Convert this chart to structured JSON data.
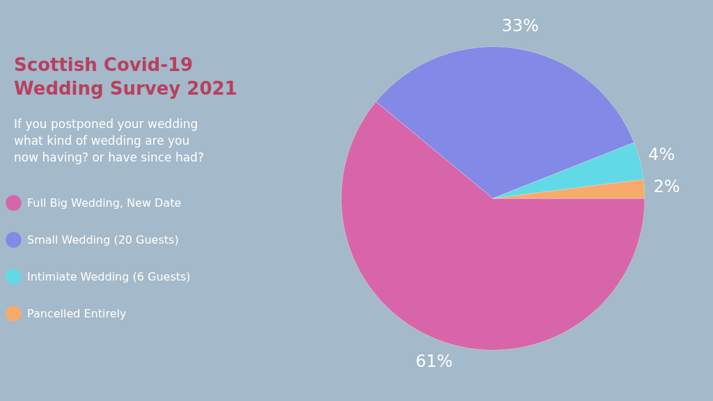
{
  "chart_data": {
    "type": "pie",
    "title": "Scottish Covid-19 Wedding Survey 2021",
    "subtitle": "If you postponed your wedding what kind of wedding are you now having? or have since had?",
    "categories": [
      "Full Big Wedding, New Date",
      "Small Wedding (20 Guests)",
      "Intimiate Wedding (6 Guests)",
      "Pancelled Entirely"
    ],
    "values": [
      61,
      33,
      4,
      2
    ],
    "colors": [
      "#d865aa",
      "#8389e6",
      "#62d9e6",
      "#f8aa6a"
    ],
    "value_labels": [
      "61%",
      "33%",
      "4%",
      "2%"
    ],
    "legend": "left"
  }
}
